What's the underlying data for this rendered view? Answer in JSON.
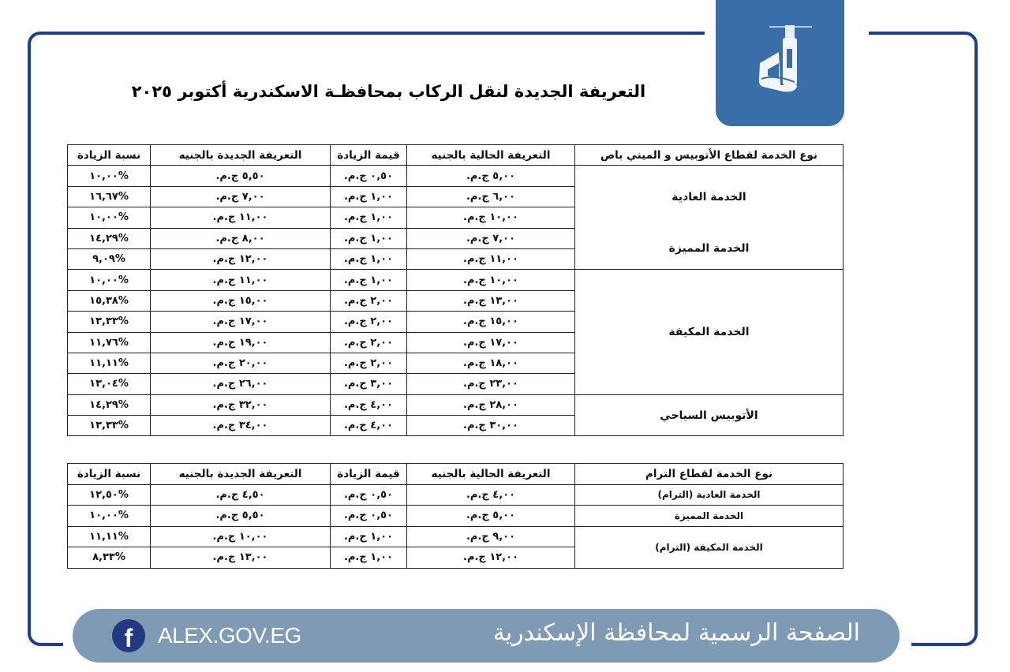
{
  "logo": {
    "icon": "alexandria-lighthouse-logo",
    "color": "#3a6ea8"
  },
  "title": "التعريفة الجديدة لنقل الركاب بمحافظـة الاسكندرية أكتوبر ٢٠٢٥",
  "tables": [
    {
      "headers": [
        "نوع الخدمة لقطاع الأتوبيس و الميني باص",
        "التعريفة الحالية بالجنيه",
        "قيمة الزيادة",
        "التعريفة الجديدة بالجنيه",
        "نسبة الزيادة"
      ],
      "groups": [
        {
          "label": "الخدمة العادية",
          "rows": [
            [
              "٥,٠٠ ج.م.",
              "٠,٥٠ ج.م.",
              "٥,٥٠ ج.م.",
              "%١٠,٠٠"
            ],
            [
              "٦,٠٠ ج.م.",
              "١,٠٠ ج.م.",
              "٧,٠٠ ج.م.",
              "%١٦,٦٧"
            ],
            [
              "١٠,٠٠ ج.م.",
              "١,٠٠ ج.م.",
              "١١,٠٠ ج.م.",
              "%١٠,٠٠"
            ]
          ]
        },
        {
          "label": "الخدمة المميزة",
          "rows": [
            [
              "٧,٠٠ ج.م.",
              "١,٠٠ ج.م.",
              "٨,٠٠ ج.م.",
              "%١٤,٢٩"
            ],
            [
              "١١,٠٠ ج.م.",
              "١,٠٠ ج.م.",
              "١٢,٠٠ ج.م.",
              "%٩,٠٩"
            ]
          ]
        },
        {
          "label": "الخدمة المكيفة",
          "rows": [
            [
              "١٠,٠٠ ج.م.",
              "١,٠٠ ج.م.",
              "١١,٠٠ ج.م.",
              "%١٠,٠٠"
            ],
            [
              "١٣,٠٠ ج.م.",
              "٢,٠٠ ج.م.",
              "١٥,٠٠ ج.م.",
              "%١٥,٣٨"
            ],
            [
              "١٥,٠٠ ج.م.",
              "٢,٠٠ ج.م.",
              "١٧,٠٠ ج.م.",
              "%١٣,٣٣"
            ],
            [
              "١٧,٠٠ ج.م.",
              "٢,٠٠ ج.م.",
              "١٩,٠٠ ج.م.",
              "%١١,٧٦"
            ],
            [
              "١٨,٠٠ ج.م.",
              "٢,٠٠ ج.م.",
              "٢٠,٠٠ ج.م.",
              "%١١,١١"
            ],
            [
              "٢٣,٠٠ ج.م.",
              "٣,٠٠ ج.م.",
              "٢٦,٠٠ ج.م.",
              "%١٣,٠٤"
            ]
          ]
        },
        {
          "label": "الأتوبيس السياحي",
          "rows": [
            [
              "٢٨,٠٠ ج.م.",
              "٤,٠٠ ج.م.",
              "٣٢,٠٠ ج.م.",
              "%١٤,٢٩"
            ],
            [
              "٣٠,٠٠ ج.م.",
              "٤,٠٠ ج.م.",
              "٣٤,٠٠ ج.م.",
              "%١٣,٣٣"
            ]
          ]
        }
      ]
    },
    {
      "headers": [
        "نوع الخدمة لقطاع الترام",
        "التعريفة الحالية بالجنيه",
        "قيمة الزيادة",
        "التعريفة الجديدة بالجنيه",
        "نسبة الزيادة"
      ],
      "groups": [
        {
          "label": "الخدمة العادية (الترام)",
          "rows": [
            [
              "٤,٠٠ ج.م.",
              "٠,٥٠ ج.م.",
              "٤,٥٠ ج.م.",
              "%١٢,٥٠"
            ]
          ]
        },
        {
          "label": "الخدمة المميزة",
          "rows": [
            [
              "٥,٠٠ ج.م.",
              "٠,٥٠ ج.م.",
              "٥,٥٠ ج.م.",
              "%١٠,٠٠"
            ]
          ]
        },
        {
          "label": "الخدمة المكيفة (الترام)",
          "rows": [
            [
              "٩,٠٠ ج.م.",
              "١,٠٠ ج.م.",
              "١٠,٠٠ ج.م.",
              "%١١,١١"
            ],
            [
              "١٢,٠٠ ج.م.",
              "١,٠٠ ج.م.",
              "١٣,٠٠ ج.م.",
              "%٨,٣٣"
            ]
          ]
        }
      ]
    }
  ],
  "footer": {
    "facebook_icon": "facebook-icon",
    "site": "ALEX.GOV.EG",
    "official_page": "الصفحة الرسمية لمحافظة الإسكندرية",
    "color": "#7f9ab4"
  }
}
